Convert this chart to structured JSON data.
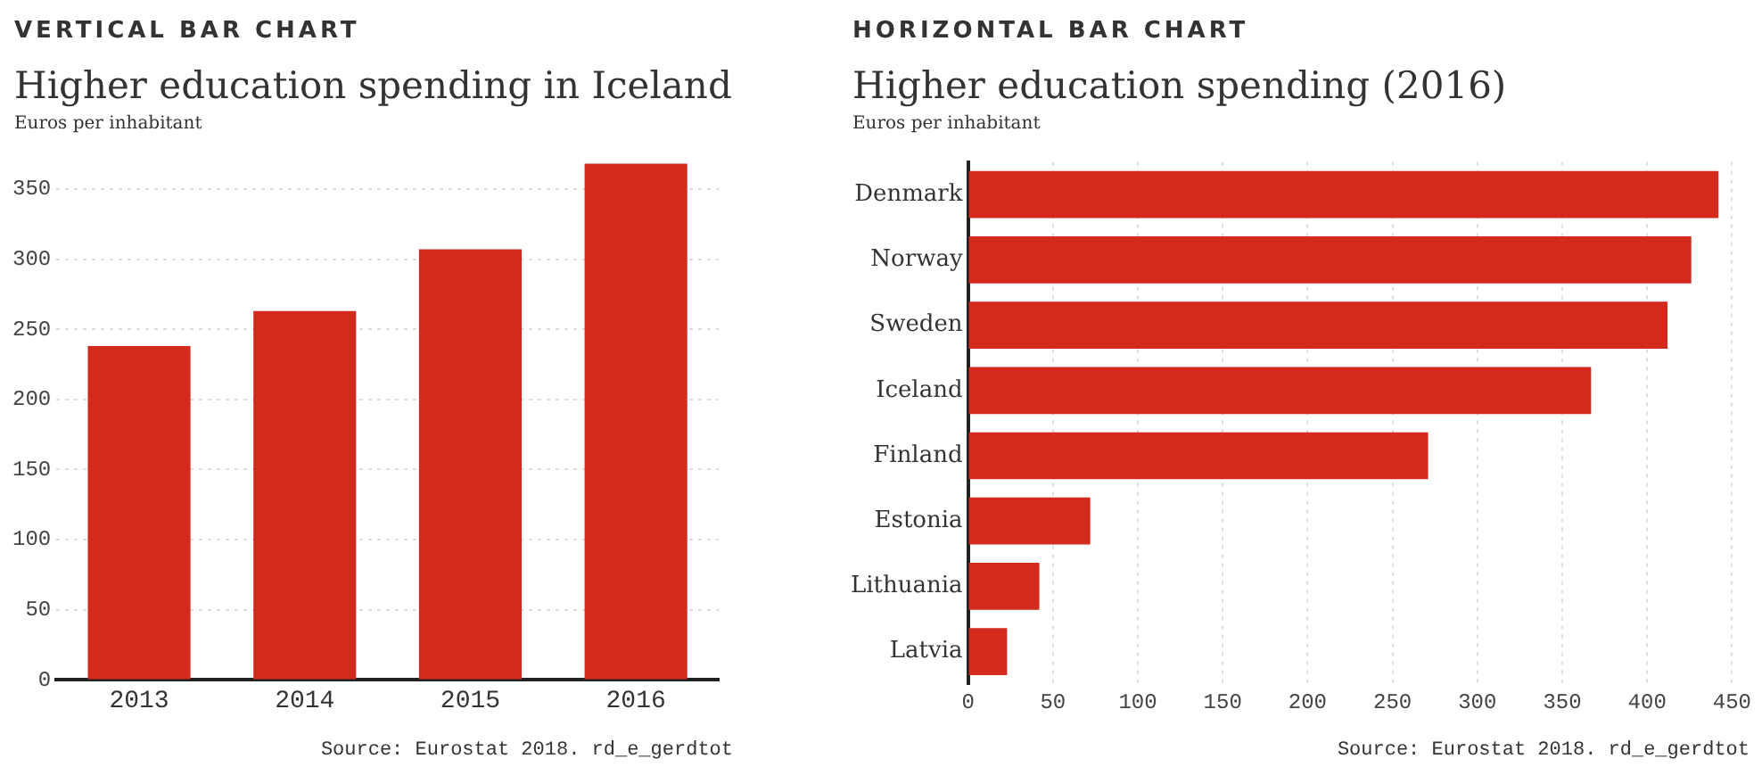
{
  "chart_data": [
    {
      "type": "bar",
      "title": "Higher education spending in Iceland",
      "subtitle": "Euros per inhabitant",
      "categories": [
        "2013",
        "2014",
        "2015",
        "2016"
      ],
      "values": [
        238,
        263,
        307,
        368
      ],
      "color": "#d42a1e",
      "ylim": [
        0,
        370
      ],
      "yticks": [
        0,
        50,
        100,
        150,
        200,
        250,
        300,
        350
      ],
      "grid": "y",
      "annotations": [
        "VERTICAL BAR CHART",
        "Source: Eurostat 2018. rd_e_gerdtot"
      ]
    },
    {
      "type": "bar",
      "orientation": "horizontal",
      "title": "Higher education spending (2016)",
      "subtitle": "Euros per inhabitant",
      "categories": [
        "Denmark",
        "Norway",
        "Sweden",
        "Iceland",
        "Finland",
        "Estonia",
        "Lithuania",
        "Latvia"
      ],
      "values": [
        442,
        426,
        412,
        367,
        271,
        72,
        42,
        23
      ],
      "color": "#d42a1e",
      "xlim": [
        0,
        450
      ],
      "xticks": [
        0,
        50,
        100,
        150,
        200,
        250,
        300,
        350,
        400,
        450
      ],
      "grid": "x",
      "annotations": [
        "HORIZONTAL BAR CHART",
        "Source: Eurostat 2018. rd_e_gerdtot"
      ]
    }
  ]
}
